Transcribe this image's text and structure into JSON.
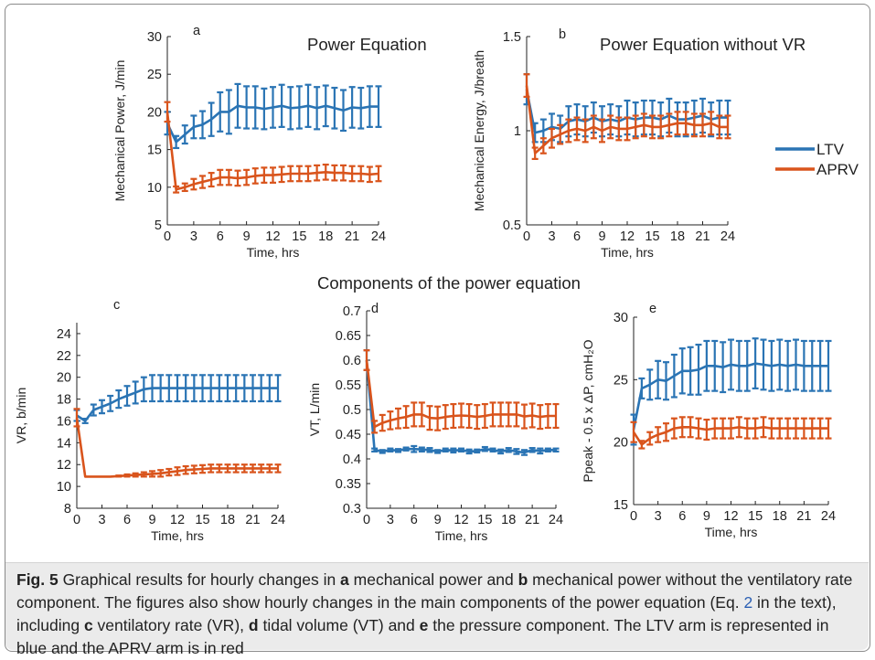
{
  "colors": {
    "ltv": "#2a74b4",
    "aprv": "#d9541c",
    "axis": "#222222"
  },
  "legend": [
    {
      "key": "ltv",
      "label": "LTV",
      "color": "#2a74b4"
    },
    {
      "key": "aprv",
      "label": "APRV",
      "color": "#d9541c"
    }
  ],
  "components_title": "Components of the power equation",
  "caption": {
    "fig_label": "Fig. 5",
    "p1": " Graphical results for hourly changes in ",
    "a": "a",
    "p2": " mechanical power and ",
    "b": "b",
    "p3": " mechanical power without the ventilatory rate component. The figures also show hourly changes in the main components of the power equation (Eq. ",
    "eq_ref": "2",
    "p4": " in the text), including ",
    "c": "c",
    "p5": " ventilatory rate (VR), ",
    "d": "d",
    "p6": " tidal volume (VT) and ",
    "e": "e",
    "p7": " the pressure component. The LTV arm is represented in blue and the APRV arm is in red"
  },
  "chart_data": [
    {
      "id": "a",
      "type": "line",
      "panel_label": "a",
      "title": "Power Equation",
      "xlabel": "Time, hrs",
      "ylabel": "Mechanical Power, J/min",
      "xlim": [
        0,
        24
      ],
      "ylim": [
        5,
        30
      ],
      "xticks": [
        "0",
        "3",
        "6",
        "9",
        "12",
        "15",
        "18",
        "21",
        "24"
      ],
      "yticks": [
        "5",
        "10",
        "15",
        "20",
        "25",
        "30"
      ],
      "x": [
        0,
        1,
        2,
        3,
        4,
        5,
        6,
        7,
        8,
        9,
        10,
        11,
        12,
        13,
        14,
        15,
        16,
        17,
        18,
        19,
        20,
        21,
        22,
        23,
        24
      ],
      "series": [
        {
          "name": "LTV",
          "values": [
            18.5,
            16,
            17,
            18,
            18.3,
            19,
            20,
            20,
            20.8,
            20.6,
            20.6,
            20.4,
            20.6,
            20.8,
            20.5,
            20.6,
            20.8,
            20.5,
            20.8,
            20.5,
            20.2,
            20.6,
            20.5,
            20.7,
            20.7
          ],
          "error": [
            1.5,
            0.8,
            1.2,
            1.5,
            1.8,
            2.2,
            2.6,
            2.9,
            2.9,
            2.8,
            2.8,
            2.7,
            2.7,
            2.8,
            2.8,
            2.8,
            2.8,
            2.8,
            2.7,
            2.7,
            2.7,
            2.7,
            2.7,
            2.7,
            2.7
          ]
        },
        {
          "name": "APRV",
          "values": [
            20,
            9.7,
            10,
            10.4,
            10.7,
            11,
            11.3,
            11.3,
            11.2,
            11.3,
            11.5,
            11.6,
            11.6,
            11.7,
            11.8,
            11.8,
            11.8,
            11.9,
            12,
            11.9,
            11.9,
            11.8,
            11.8,
            11.7,
            11.8
          ],
          "error": [
            1.3,
            0.4,
            0.5,
            0.7,
            0.8,
            0.9,
            1,
            1,
            1,
            1,
            1,
            1,
            1,
            1,
            1,
            1,
            1,
            1,
            1,
            1,
            1,
            1,
            1,
            1,
            1
          ]
        }
      ]
    },
    {
      "id": "b",
      "type": "line",
      "panel_label": "b",
      "title": "Power Equation without VR",
      "xlabel": "Time, hrs",
      "ylabel": "Mechanical Energy, J/breath",
      "xlim": [
        0,
        24
      ],
      "ylim": [
        0.5,
        1.5
      ],
      "xticks": [
        "0",
        "3",
        "6",
        "9",
        "12",
        "15",
        "18",
        "21",
        "24"
      ],
      "yticks": [
        "0.5",
        "1",
        "1.5"
      ],
      "x": [
        0,
        1,
        2,
        3,
        4,
        5,
        6,
        7,
        8,
        9,
        10,
        11,
        12,
        13,
        14,
        15,
        16,
        17,
        18,
        19,
        20,
        21,
        22,
        23,
        24
      ],
      "series": [
        {
          "name": "LTV",
          "values": [
            1.22,
            0.99,
            1.0,
            1.02,
            1.01,
            1.05,
            1.06,
            1.05,
            1.07,
            1.05,
            1.06,
            1.05,
            1.07,
            1.06,
            1.07,
            1.07,
            1.06,
            1.08,
            1.06,
            1.06,
            1.07,
            1.08,
            1.06,
            1.07,
            1.07
          ],
          "error": [
            0.08,
            0.05,
            0.06,
            0.07,
            0.07,
            0.08,
            0.08,
            0.08,
            0.08,
            0.08,
            0.08,
            0.08,
            0.09,
            0.09,
            0.09,
            0.09,
            0.09,
            0.09,
            0.09,
            0.09,
            0.09,
            0.09,
            0.09,
            0.09,
            0.09
          ]
        },
        {
          "name": "APRV",
          "values": [
            1.24,
            0.88,
            0.92,
            0.96,
            0.98,
            1.0,
            1.01,
            1.0,
            1.02,
            1.0,
            1.02,
            1.01,
            1.01,
            1.02,
            1.03,
            1.02,
            1.02,
            1.03,
            1.04,
            1.04,
            1.03,
            1.03,
            1.04,
            1.02,
            1.02
          ],
          "error": [
            0.06,
            0.03,
            0.04,
            0.05,
            0.05,
            0.06,
            0.06,
            0.06,
            0.06,
            0.06,
            0.06,
            0.06,
            0.06,
            0.06,
            0.06,
            0.06,
            0.06,
            0.06,
            0.06,
            0.06,
            0.06,
            0.06,
            0.06,
            0.06,
            0.06
          ]
        }
      ]
    },
    {
      "id": "c",
      "type": "line",
      "panel_label": "c",
      "title": "",
      "xlabel": "Time, hrs",
      "ylabel": "VR, b/min",
      "xlim": [
        0,
        24
      ],
      "ylim": [
        8,
        25
      ],
      "xticks": [
        "0",
        "3",
        "6",
        "9",
        "12",
        "15",
        "18",
        "21",
        "24"
      ],
      "yticks": [
        "8",
        "10",
        "12",
        "14",
        "16",
        "18",
        "20",
        "22",
        "24"
      ],
      "x": [
        0,
        1,
        2,
        3,
        4,
        5,
        6,
        7,
        8,
        9,
        10,
        11,
        12,
        13,
        14,
        15,
        16,
        17,
        18,
        19,
        20,
        21,
        22,
        23,
        24
      ],
      "series": [
        {
          "name": "LTV",
          "values": [
            16.5,
            16,
            17,
            17.3,
            17.6,
            18,
            18.3,
            18.6,
            18.9,
            19,
            19,
            19,
            19,
            19,
            19,
            19,
            19,
            19,
            19,
            19,
            19,
            19,
            19,
            19,
            19
          ],
          "error": [
            0.5,
            0.2,
            0.5,
            0.6,
            0.7,
            0.8,
            0.9,
            1,
            1.1,
            1.2,
            1.2,
            1.2,
            1.2,
            1.2,
            1.2,
            1.2,
            1.2,
            1.2,
            1.2,
            1.2,
            1.2,
            1.2,
            1.2,
            1.2,
            1.2
          ]
        },
        {
          "name": "APRV",
          "values": [
            16.3,
            10.9,
            10.9,
            10.9,
            10.9,
            10.95,
            11,
            11.05,
            11.1,
            11.15,
            11.2,
            11.3,
            11.4,
            11.5,
            11.55,
            11.6,
            11.65,
            11.65,
            11.65,
            11.65,
            11.65,
            11.65,
            11.65,
            11.65,
            11.65
          ],
          "error": [
            0.8,
            0,
            0,
            0,
            0,
            0.05,
            0.1,
            0.15,
            0.2,
            0.25,
            0.3,
            0.3,
            0.35,
            0.35,
            0.35,
            0.35,
            0.35,
            0.35,
            0.35,
            0.35,
            0.35,
            0.35,
            0.35,
            0.35,
            0.35
          ]
        }
      ]
    },
    {
      "id": "d",
      "type": "line",
      "panel_label": "d",
      "title": "",
      "xlabel": "Time, hrs",
      "ylabel": "VT, L/min",
      "xlim": [
        0,
        24
      ],
      "ylim": [
        0.3,
        0.7
      ],
      "xticks": [
        "0",
        "3",
        "6",
        "9",
        "12",
        "15",
        "18",
        "21",
        "24"
      ],
      "yticks": [
        "0.3",
        "0.35",
        "0.4",
        "0.45",
        "0.5",
        "0.55",
        "0.6",
        "0.65",
        "0.7"
      ],
      "x": [
        0,
        1,
        2,
        3,
        4,
        5,
        6,
        7,
        8,
        9,
        10,
        11,
        12,
        13,
        14,
        15,
        16,
        17,
        18,
        19,
        20,
        21,
        22,
        23,
        24
      ],
      "series": [
        {
          "name": "LTV",
          "values": [
            0.6,
            0.418,
            0.415,
            0.418,
            0.417,
            0.42,
            0.42,
            0.419,
            0.418,
            0.415,
            0.418,
            0.417,
            0.418,
            0.415,
            0.416,
            0.42,
            0.418,
            0.415,
            0.418,
            0.415,
            0.413,
            0.418,
            0.416,
            0.418,
            0.418
          ],
          "error": [
            0.02,
            0.003,
            0.003,
            0.003,
            0.003,
            0.003,
            0.006,
            0.004,
            0.004,
            0.003,
            0.003,
            0.004,
            0.003,
            0.004,
            0.003,
            0.004,
            0.003,
            0.004,
            0.004,
            0.005,
            0.005,
            0.004,
            0.005,
            0.003,
            0.003
          ]
        },
        {
          "name": "APRV",
          "values": [
            0.6,
            0.465,
            0.473,
            0.478,
            0.482,
            0.485,
            0.49,
            0.49,
            0.483,
            0.482,
            0.485,
            0.487,
            0.488,
            0.487,
            0.485,
            0.487,
            0.49,
            0.49,
            0.49,
            0.49,
            0.486,
            0.488,
            0.485,
            0.487,
            0.487
          ],
          "error": [
            0.02,
            0.012,
            0.016,
            0.018,
            0.02,
            0.022,
            0.024,
            0.024,
            0.024,
            0.024,
            0.024,
            0.024,
            0.024,
            0.024,
            0.024,
            0.024,
            0.024,
            0.024,
            0.024,
            0.024,
            0.024,
            0.024,
            0.024,
            0.024,
            0.024
          ]
        }
      ]
    },
    {
      "id": "e",
      "type": "line",
      "panel_label": "e",
      "title": "",
      "xlabel": "Time, hrs",
      "ylabel": "Ppeak - 0.5 x ΔP, cmH₂O",
      "xlim": [
        0,
        24
      ],
      "ylim": [
        15,
        30
      ],
      "xticks": [
        "0",
        "3",
        "6",
        "9",
        "12",
        "15",
        "18",
        "21",
        "24"
      ],
      "yticks": [
        "15",
        "20",
        "25",
        "30"
      ],
      "x": [
        0,
        1,
        2,
        3,
        4,
        5,
        6,
        7,
        8,
        9,
        10,
        11,
        12,
        13,
        14,
        15,
        16,
        17,
        18,
        19,
        20,
        21,
        22,
        23,
        24
      ],
      "series": [
        {
          "name": "LTV",
          "values": [
            21,
            24.3,
            24.6,
            25,
            24.9,
            25.3,
            25.7,
            25.7,
            25.8,
            26.1,
            26.1,
            26,
            26.2,
            26.1,
            26.1,
            26.3,
            26.2,
            26.1,
            26.2,
            26.1,
            26.2,
            26.1,
            26.1,
            26.1,
            26.1
          ],
          "error": [
            1.2,
            0.8,
            1.2,
            1.5,
            1.5,
            1.7,
            1.8,
            1.9,
            2,
            2,
            2,
            2,
            2,
            2,
            2,
            2,
            2,
            2,
            2,
            2,
            2,
            2,
            2,
            2,
            2
          ]
        },
        {
          "name": "APRV",
          "values": [
            20.8,
            19.8,
            20.3,
            20.6,
            20.8,
            21.1,
            21.2,
            21.2,
            21.1,
            21,
            21.1,
            21.1,
            21.1,
            21.2,
            21.1,
            21.1,
            21.2,
            21.1,
            21.1,
            21.1,
            21.1,
            21.1,
            21.1,
            21.1,
            21.1
          ],
          "error": [
            0.8,
            0.3,
            0.5,
            0.6,
            0.7,
            0.8,
            0.8,
            0.8,
            0.8,
            0.8,
            0.8,
            0.8,
            0.8,
            0.8,
            0.8,
            0.8,
            0.8,
            0.8,
            0.8,
            0.8,
            0.8,
            0.8,
            0.8,
            0.8,
            0.8
          ]
        }
      ]
    }
  ]
}
